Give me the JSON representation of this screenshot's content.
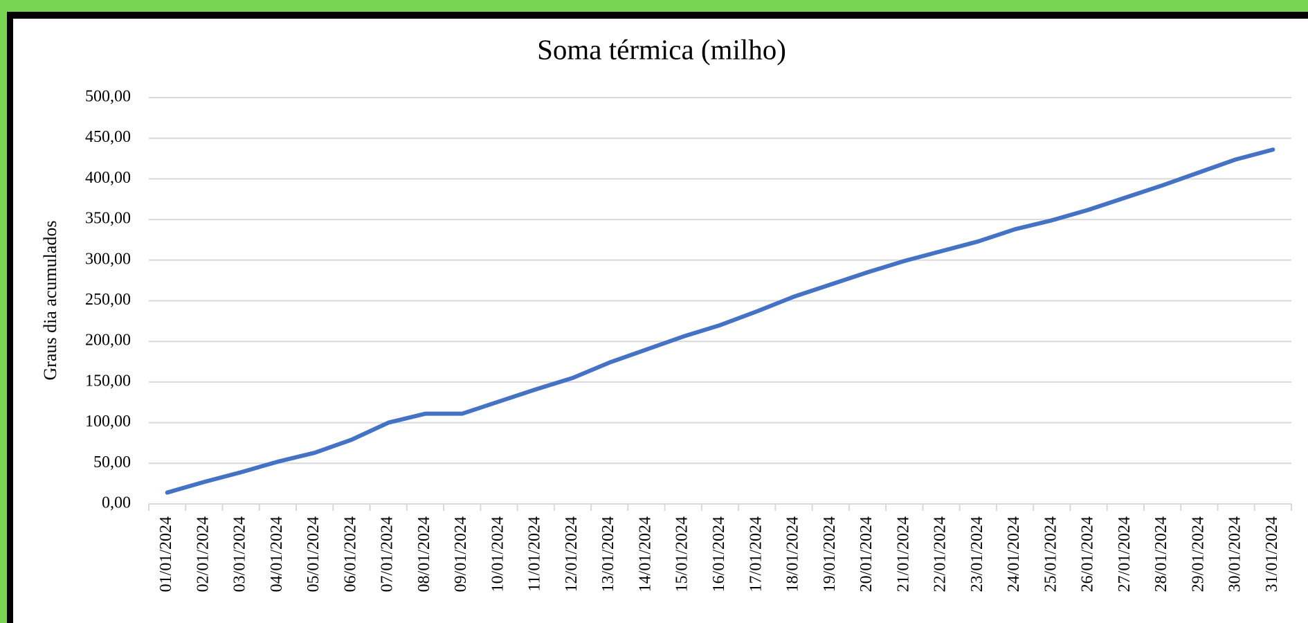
{
  "chart_data": {
    "type": "line",
    "title": "Soma térmica (milho)",
    "y_label": "Graus dia acumulados",
    "categories": [
      "01/01/2024",
      "02/01/2024",
      "03/01/2024",
      "04/01/2024",
      "05/01/2024",
      "06/01/2024",
      "07/01/2024",
      "08/01/2024",
      "09/01/2024",
      "10/01/2024",
      "11/01/2024",
      "12/01/2024",
      "13/01/2024",
      "14/01/2024",
      "15/01/2024",
      "16/01/2024",
      "17/01/2024",
      "18/01/2024",
      "19/01/2024",
      "20/01/2024",
      "21/01/2024",
      "22/01/2024",
      "23/01/2024",
      "24/01/2024",
      "25/01/2024",
      "26/01/2024",
      "27/01/2024",
      "28/01/2024",
      "29/01/2024",
      "30/01/2024",
      "31/01/2024"
    ],
    "values": [
      14,
      27,
      39,
      52,
      63,
      79,
      100,
      111,
      111,
      126,
      141,
      155,
      174,
      190,
      206,
      220,
      237,
      255,
      270,
      285,
      299,
      311,
      323,
      338,
      349,
      362,
      377,
      392,
      408,
      424,
      436
    ],
    "color": "#4472c4",
    "ylim": [
      0,
      500
    ],
    "yticks": [
      {
        "value": 0,
        "label": "0,00"
      },
      {
        "value": 50,
        "label": "50,00"
      },
      {
        "value": 100,
        "label": "100,00"
      },
      {
        "value": 150,
        "label": "150,00"
      },
      {
        "value": 200,
        "label": "200,00"
      },
      {
        "value": 250,
        "label": "250,00"
      },
      {
        "value": 300,
        "label": "300,00"
      },
      {
        "value": 350,
        "label": "350,00"
      },
      {
        "value": 400,
        "label": "400,00"
      },
      {
        "value": 450,
        "label": "450,00"
      },
      {
        "value": 500,
        "label": "500,00"
      }
    ],
    "grid": true
  }
}
